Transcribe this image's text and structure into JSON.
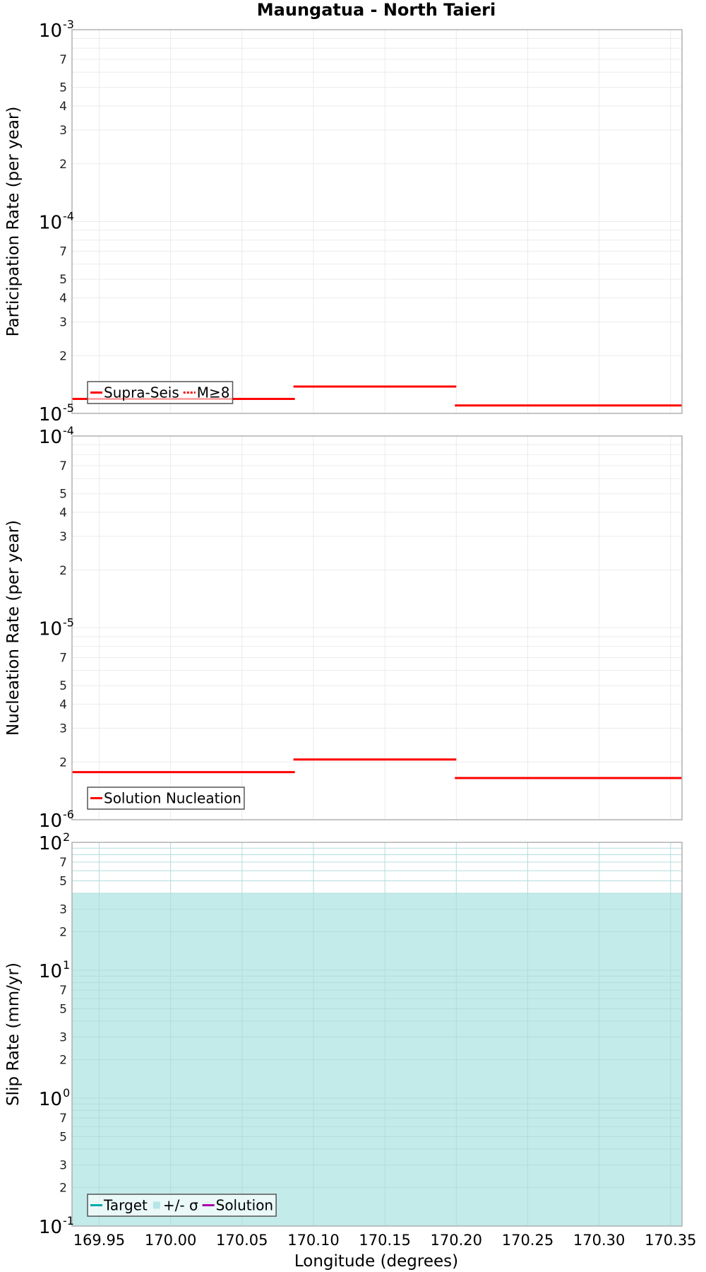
{
  "chart_data": {
    "type": "line",
    "title": "Maungatua - North Taieri",
    "xlabel": "Longitude (degrees)",
    "xlim": [
      169.931,
      170.358
    ],
    "xticks": [
      "169.95",
      "170.00",
      "170.05",
      "170.10",
      "170.15",
      "170.20",
      "170.25",
      "170.30",
      "170.35"
    ],
    "xtick_values": [
      169.95,
      170.0,
      170.05,
      170.1,
      170.15,
      170.2,
      170.25,
      170.3,
      170.35
    ],
    "grid": true,
    "panels": [
      {
        "name": "participation",
        "ylabel": "Participation Rate (per year)",
        "yscale": "log",
        "ylim": [
          1e-05,
          0.001
        ],
        "major_ticks": [
          {
            "base": "10",
            "exp": "-3"
          },
          {
            "base": "10",
            "exp": "-4"
          },
          {
            "base": "10",
            "exp": "-5"
          }
        ],
        "minor_labels": [
          "7",
          "5",
          "4",
          "3",
          "2"
        ],
        "legend": {
          "position": "lower left",
          "entries": [
            {
              "label": "Supra-Seis",
              "color": "#ff0000",
              "style": "solid"
            },
            {
              "label": "M≥8",
              "color": "#ff0000",
              "style": "dotted"
            }
          ]
        },
        "series": [
          {
            "name": "Supra-Seis",
            "color": "#ff0000",
            "type": "step",
            "segments": [
              {
                "x0": 169.931,
                "x1": 170.087,
                "y": 1.19e-05
              },
              {
                "x0": 170.086,
                "x1": 170.2,
                "y": 1.38e-05
              },
              {
                "x0": 170.199,
                "x1": 170.358,
                "y": 1.1e-05
              }
            ]
          }
        ]
      },
      {
        "name": "nucleation",
        "ylabel": "Nucleation Rate (per year)",
        "yscale": "log",
        "ylim": [
          1e-06,
          0.0001
        ],
        "major_ticks": [
          {
            "base": "10",
            "exp": "-4"
          },
          {
            "base": "10",
            "exp": "-5"
          },
          {
            "base": "10",
            "exp": "-6"
          }
        ],
        "minor_labels": [
          "7",
          "5",
          "4",
          "3",
          "2"
        ],
        "legend": {
          "position": "lower left",
          "entries": [
            {
              "label": "Solution Nucleation",
              "color": "#ff0000",
              "style": "solid"
            }
          ]
        },
        "series": [
          {
            "name": "Solution Nucleation",
            "color": "#ff0000",
            "type": "step",
            "segments": [
              {
                "x0": 169.931,
                "x1": 170.087,
                "y": 1.77e-06
              },
              {
                "x0": 170.086,
                "x1": 170.2,
                "y": 2.06e-06
              },
              {
                "x0": 170.199,
                "x1": 170.358,
                "y": 1.65e-06
              }
            ]
          }
        ]
      },
      {
        "name": "slip-rate",
        "ylabel": "Slip Rate (mm/yr)",
        "yscale": "log",
        "ylim": [
          0.1,
          100
        ],
        "major_ticks": [
          {
            "base": "10",
            "exp": "2"
          },
          {
            "base": "10",
            "exp": "1"
          },
          {
            "base": "10",
            "exp": "0"
          },
          {
            "base": "10",
            "exp": "-1"
          }
        ],
        "minor_labels": [
          "7",
          "5",
          "3",
          "2"
        ],
        "legend": {
          "position": "lower left",
          "entries": [
            {
              "label": "Target",
              "color": "#00aaaa",
              "style": "solid"
            },
            {
              "label": "+/- σ",
              "color": "#b6e6e6",
              "style": "fill"
            },
            {
              "label": "Solution",
              "color": "#aa00aa",
              "style": "solid"
            }
          ]
        },
        "series": [
          {
            "name": "+/- σ",
            "color": "#c2ebea",
            "type": "band",
            "x0": 169.931,
            "x1": 170.358,
            "y_low": 0.1,
            "y_high": 40
          }
        ]
      }
    ]
  },
  "colors": {
    "plot_border": "#b0b0b0",
    "grid": "#ebebeb",
    "band_grid": "#b4dcdc",
    "legend_border": "#555555"
  }
}
